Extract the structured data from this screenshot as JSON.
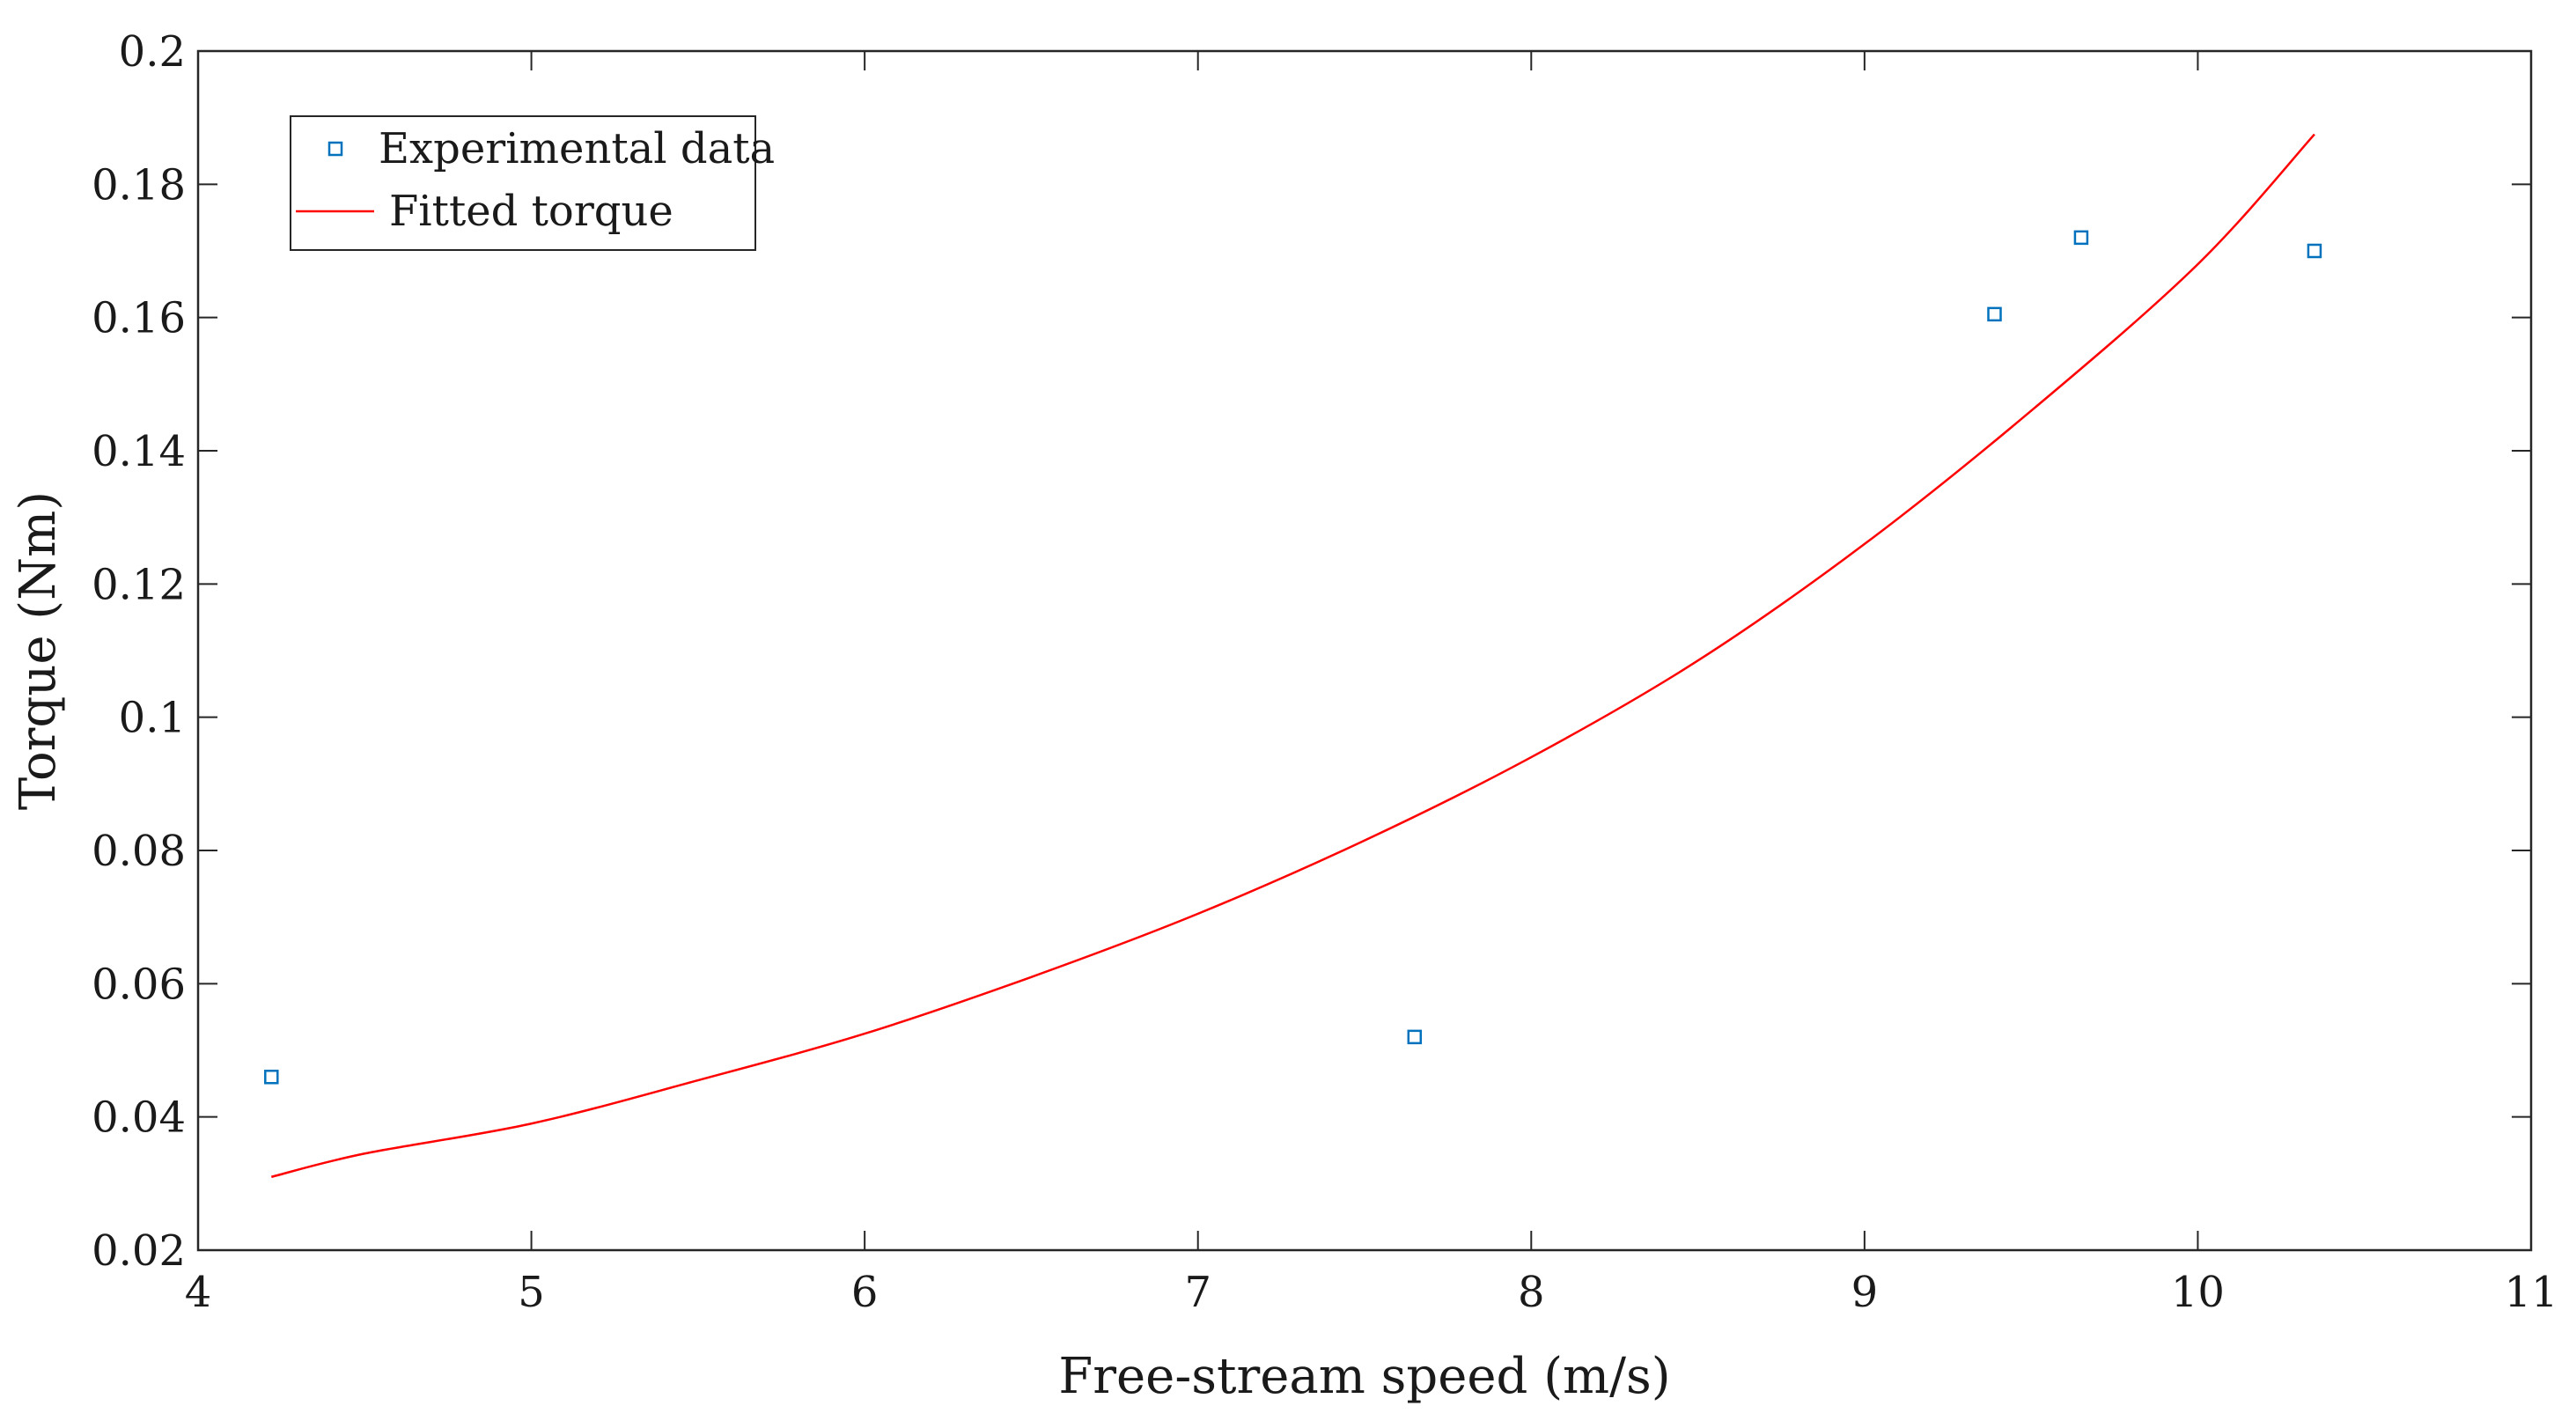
{
  "chart_data": {
    "type": "scatter",
    "title": "",
    "xlabel": "Free-stream speed (m/s)",
    "ylabel": "Torque (Nm)",
    "xlim": [
      4,
      11
    ],
    "ylim": [
      0.02,
      0.2
    ],
    "x_ticks": [
      4,
      5,
      6,
      7,
      8,
      9,
      10,
      11
    ],
    "x_tick_labels": [
      "4",
      "5",
      "6",
      "7",
      "8",
      "9",
      "10",
      "11"
    ],
    "y_ticks": [
      0.02,
      0.04,
      0.06,
      0.08,
      0.1,
      0.12,
      0.14,
      0.16,
      0.18,
      0.2
    ],
    "y_tick_labels": [
      "0.02",
      "0.04",
      "0.06",
      "0.08",
      "0.1",
      "0.12",
      "0.14",
      "0.16",
      "0.18",
      "0.2"
    ],
    "grid": false,
    "legend_position": "top-left",
    "series": [
      {
        "name": "Experimental data",
        "kind": "scatter",
        "marker": "square",
        "color": "#0072BD",
        "x": [
          4.22,
          7.65,
          9.39,
          9.65,
          10.35
        ],
        "y": [
          0.046,
          0.052,
          0.1605,
          0.172,
          0.17
        ]
      },
      {
        "name": "Fitted torque",
        "kind": "line",
        "color": "#FF0000",
        "x": [
          4.22,
          4.5,
          5.0,
          5.5,
          6.0,
          6.5,
          7.0,
          7.5,
          8.0,
          8.5,
          9.0,
          9.5,
          10.0,
          10.35
        ],
        "y": [
          0.031,
          0.0345,
          0.039,
          0.0455,
          0.0525,
          0.061,
          0.0705,
          0.0815,
          0.094,
          0.1085,
          0.126,
          0.146,
          0.168,
          0.1875
        ]
      }
    ]
  }
}
